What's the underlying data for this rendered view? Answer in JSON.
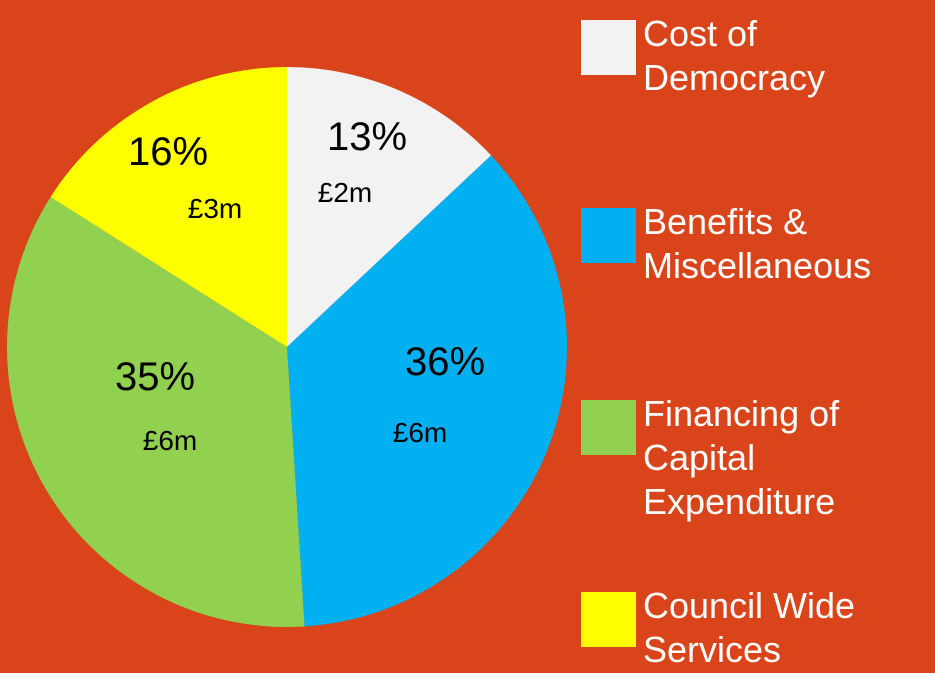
{
  "chart_data": {
    "type": "pie",
    "categories": [
      "Cost of Democracy",
      "Benefits & Miscellaneous",
      "Financing of Capital Expenditure",
      "Council Wide Services"
    ],
    "values": [
      13,
      36,
      35,
      16
    ],
    "value_labels": [
      "13%",
      "36%",
      "35%",
      "16%"
    ],
    "amount_labels": [
      "£2m",
      "£6m",
      "£6m",
      "£3m"
    ],
    "colors": [
      "#f2f2f2",
      "#00b0f0",
      "#92d050",
      "#ffff00"
    ]
  }
}
